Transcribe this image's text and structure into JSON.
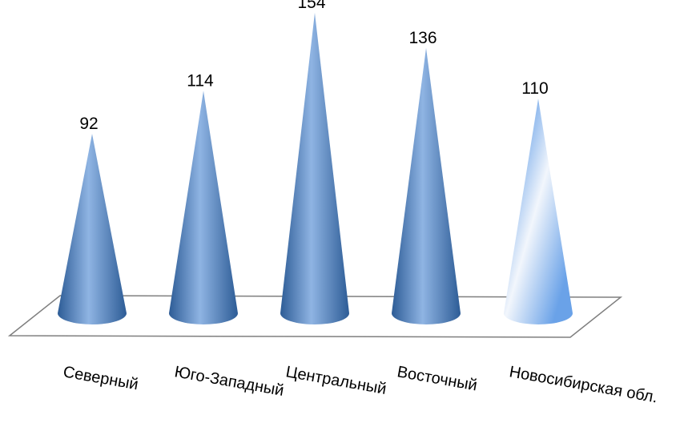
{
  "chart_data": {
    "type": "bar",
    "style": "3d-cone",
    "categories": [
      "Северный",
      "Юго-Западный",
      "Центральный",
      "Восточный",
      "Новосибирская обл."
    ],
    "values": [
      92,
      114,
      154,
      136,
      110
    ],
    "ylim": [
      0,
      154
    ],
    "grid": false,
    "legend": "none",
    "colors": {
      "cone_base": "#4f81bd",
      "cone_dark": "#2d5c96",
      "cone_light": "#8fb4e3",
      "highlight_cone_light": "#f2f6fc",
      "highlight_cone_mid": "#6aa2e8",
      "floor_stroke": "#7f7f7f"
    },
    "highlight_index": 4
  }
}
